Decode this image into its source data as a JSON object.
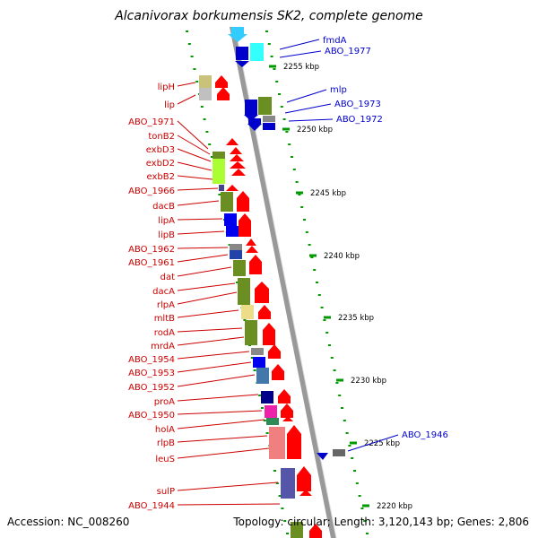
{
  "title": "Alcanivorax borkumensis SK2, complete genome",
  "accession": "Accession: NC_008260",
  "topology": "Topology: circular; Length: 3,120,143 bp; Genes: 2,806",
  "colors": {
    "forward_label": "#cc0000",
    "reverse_label": "#0000cc",
    "tick": "#009900",
    "backbone": "#999999"
  },
  "ticks": [
    "2255 kbp",
    "2250 kbp",
    "2245 kbp",
    "2240 kbp",
    "2235 kbp",
    "2230 kbp",
    "2225 kbp",
    "2220 kbp"
  ],
  "reverse_labels": [
    "fmdA",
    "ABO_1977",
    "mlp",
    "ABO_1973",
    "ABO_1972",
    "ABO_1946"
  ],
  "forward_labels": [
    "lipH",
    "lip",
    "ABO_1971",
    "tonB2",
    "exbD3",
    "exbD2",
    "exbB2",
    "ABO_1966",
    "dacB",
    "lipA",
    "lipB",
    "ABO_1962",
    "ABO_1961",
    "dat",
    "dacA",
    "rlpA",
    "mltB",
    "rodA",
    "mrdA",
    "ABO_1954",
    "ABO_1953",
    "ABO_1952",
    "proA",
    "ABO_1950",
    "holA",
    "rlpB",
    "leuS",
    "sulP",
    "ABO_1944"
  ]
}
